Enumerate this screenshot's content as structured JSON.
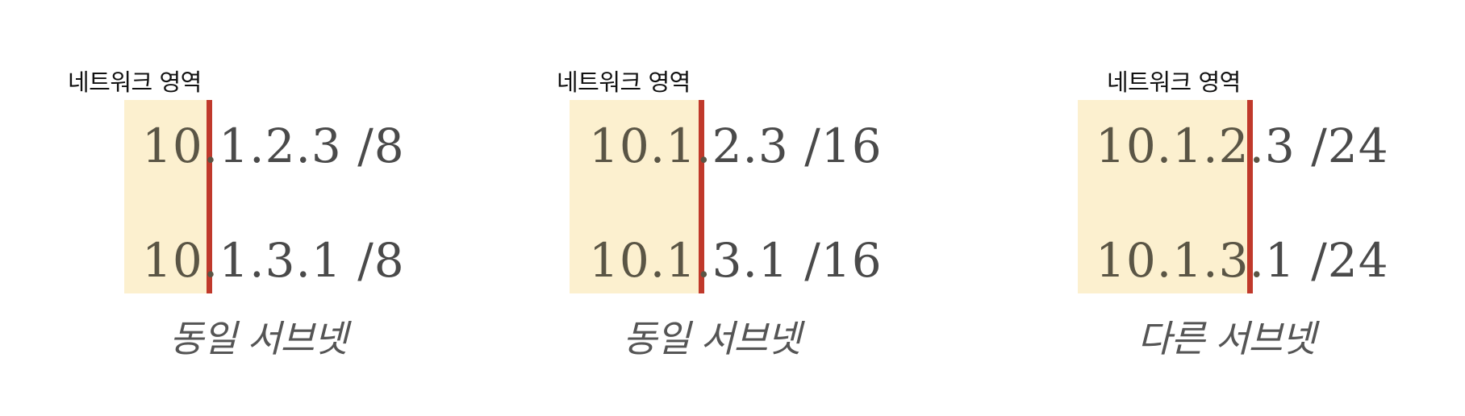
{
  "colors": {
    "network_highlight": "#fcf0cf",
    "boundary_line": "#c0392b",
    "text": "#4a4a4a"
  },
  "panels": [
    {
      "region_label": "네트워크 영역",
      "ip1": {
        "network": "10.",
        "host": "1.2.3 /8"
      },
      "ip2": {
        "network": "10.",
        "host": "1.3.1 /8"
      },
      "caption": "동일 서브넷"
    },
    {
      "region_label": "네트워크 영역",
      "ip1": {
        "network": "10.1.",
        "host": "2.3 /16"
      },
      "ip2": {
        "network": "10.1.",
        "host": "3.1 /16"
      },
      "caption": "동일 서브넷"
    },
    {
      "region_label": "네트워크 영역",
      "ip1": {
        "network": "10.1.2.",
        "host": "3 /24"
      },
      "ip2": {
        "network": "10.1.3.",
        "host": "1 /24"
      },
      "caption": "다른 서브넷"
    }
  ]
}
